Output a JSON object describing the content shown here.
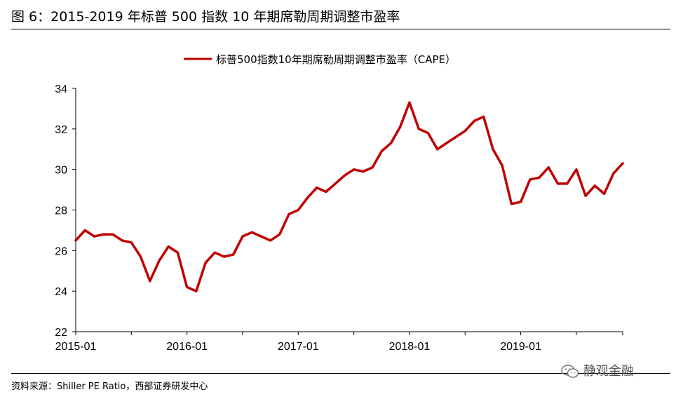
{
  "figure": {
    "title": "图 6：2015-2019 年标普 500 指数 10 年期席勒周期调整市盈率",
    "source": "资料来源：Shiller PE Ratio，西部证券研发中心",
    "watermark": "静观金融",
    "watermark_icon": "wechat-icon"
  },
  "chart_data": {
    "type": "line",
    "title": "",
    "xlabel": "",
    "ylabel": "",
    "ylim": [
      22,
      34
    ],
    "yticks": [
      22,
      24,
      26,
      28,
      30,
      32,
      34
    ],
    "xticks": [
      "2015-01",
      "2016-01",
      "2017-01",
      "2018-01",
      "2019-01"
    ],
    "legend_position": "top-center",
    "grid": false,
    "line_color": "#C00000",
    "series": [
      {
        "name": "标普500指数10年期席勒周期调整市盈率（CAPE）",
        "values": [
          26.5,
          27.0,
          26.7,
          26.8,
          26.8,
          26.5,
          26.4,
          25.7,
          24.5,
          25.5,
          26.2,
          25.9,
          24.2,
          24.0,
          25.4,
          25.9,
          25.7,
          25.8,
          26.7,
          26.9,
          26.7,
          26.5,
          26.8,
          27.8,
          28.0,
          28.6,
          29.1,
          28.9,
          29.3,
          29.7,
          30.0,
          29.9,
          30.1,
          30.9,
          31.3,
          32.1,
          33.3,
          32.0,
          31.8,
          31.0,
          31.3,
          31.6,
          31.9,
          32.4,
          32.6,
          31.0,
          30.2,
          28.3,
          28.4,
          29.5,
          29.6,
          30.1,
          29.3,
          29.3,
          30.0,
          28.7,
          29.2,
          28.8,
          29.8,
          30.3
        ]
      }
    ]
  }
}
